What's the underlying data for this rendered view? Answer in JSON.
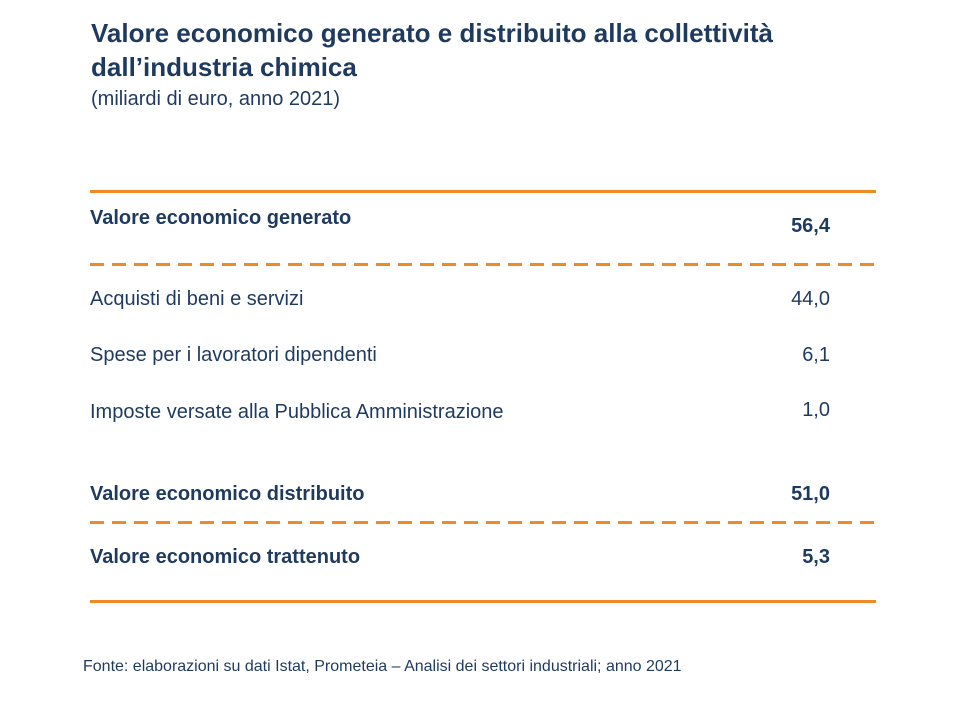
{
  "header": {
    "title": "Valore economico generato e distribuito alla collettività dall’industria chimica",
    "subtitle": "(miliardi di euro, anno 2021)"
  },
  "table": {
    "generated": {
      "label": "Valore economico generato",
      "value": "56,4"
    },
    "items": [
      {
        "label": "Acquisti di beni e servizi",
        "value": "44,0"
      },
      {
        "label": "Spese per i lavoratori dipendenti",
        "value": "6,1"
      },
      {
        "label": "Imposte versate alla Pubblica Amministrazione",
        "value": "1,0"
      }
    ],
    "distributed": {
      "label": "Valore economico distribuito",
      "value": "51,0"
    },
    "retained": {
      "label": "Valore economico trattenuto",
      "value": "5,3"
    }
  },
  "footer": {
    "source": "Fonte: elaborazioni su dati Istat, Prometeia – Analisi dei settori industriali; anno 2021"
  },
  "colors": {
    "text": "#1f3a5f",
    "rule": "#f08a24",
    "background": "#ffffff"
  }
}
